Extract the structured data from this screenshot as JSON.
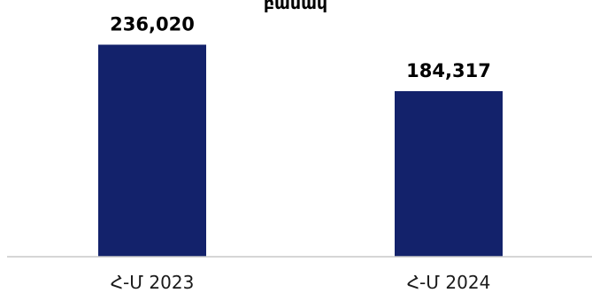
{
  "chart_data": {
    "type": "bar",
    "title": "բանակ",
    "categories": [
      "Հ-Մ 2023",
      "Հ-Մ 2024"
    ],
    "values": [
      236020,
      184317
    ],
    "value_labels": [
      "236,020",
      "184,317"
    ],
    "ylim": [
      0,
      270000
    ],
    "grid": false,
    "legend": "none",
    "bar_color": "#13226b",
    "axis_color": "#c8c8c8"
  }
}
